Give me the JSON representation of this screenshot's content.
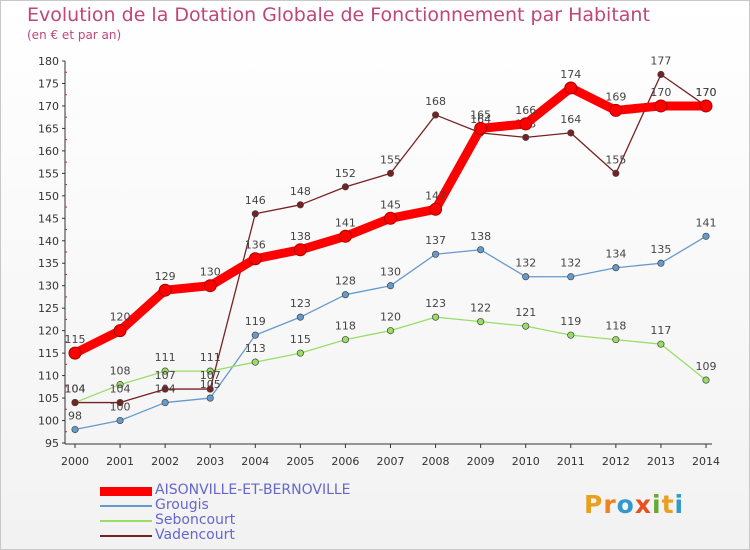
{
  "header": {
    "title": "Evolution de la Dotation Globale de Fonctionnement par Habitant",
    "subtitle": "(en € et par an)"
  },
  "brand": {
    "text": "Proxiti"
  },
  "chart_data": {
    "type": "line",
    "title": "Evolution de la Dotation Globale de Fonctionnement par Habitant",
    "subtitle": "(en € et par an)",
    "x": [
      "2000",
      "2001",
      "2002",
      "2003",
      "2004",
      "2005",
      "2006",
      "2007",
      "2008",
      "2009",
      "2010",
      "2011",
      "2012",
      "2013",
      "2014"
    ],
    "ylim": [
      95,
      180
    ],
    "yticks": [
      95,
      100,
      105,
      110,
      115,
      120,
      125,
      130,
      135,
      140,
      145,
      150,
      155,
      160,
      165,
      170,
      175,
      180
    ],
    "grid": false,
    "legend_position": "bottom",
    "series": [
      {
        "name": "AISONVILLE-ET-BERNOVILLE",
        "color": "#ff0000",
        "values": [
          115,
          120,
          129,
          130,
          136,
          138,
          141,
          145,
          147,
          165,
          166,
          174,
          169,
          170,
          170
        ]
      },
      {
        "name": "Grougis",
        "color": "#6699cc",
        "values": [
          98,
          100,
          104,
          105,
          119,
          123,
          128,
          130,
          137,
          138,
          132,
          132,
          134,
          135,
          141
        ]
      },
      {
        "name": "Seboncourt",
        "color": "#99dd66",
        "values": [
          104,
          108,
          111,
          111,
          113,
          115,
          118,
          120,
          123,
          122,
          121,
          119,
          118,
          117,
          109
        ]
      },
      {
        "name": "Vadencourt",
        "color": "#772222",
        "values": [
          104,
          104,
          107,
          107,
          146,
          148,
          152,
          155,
          168,
          164,
          163,
          164,
          155,
          177,
          170
        ]
      }
    ]
  }
}
